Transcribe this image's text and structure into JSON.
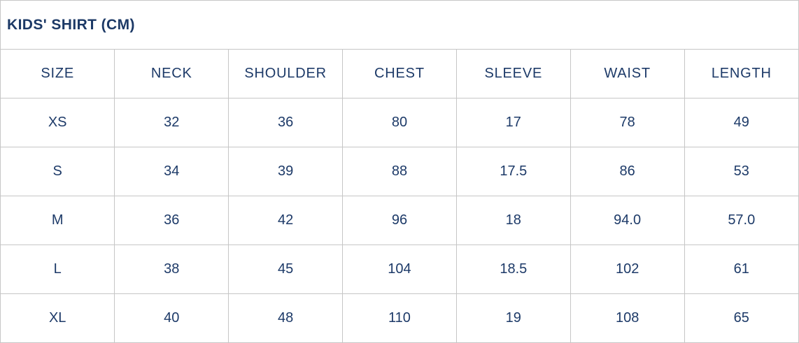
{
  "title": "KIDS' SHIRT (CM)",
  "colors": {
    "text_navy": "#1d3a68",
    "title_navy": "#1c3966",
    "border_gray": "#c6c6c6",
    "background": "#ffffff"
  },
  "chart_data": {
    "type": "table",
    "title": "KIDS' SHIRT (CM)",
    "columns": [
      "SIZE",
      "NECK",
      "SHOULDER",
      "CHEST",
      "SLEEVE",
      "WAIST",
      "LENGTH"
    ],
    "rows": [
      [
        "XS",
        "32",
        "36",
        "80",
        "17",
        "78",
        "49"
      ],
      [
        "S",
        "34",
        "39",
        "88",
        "17.5",
        "86",
        "53"
      ],
      [
        "M",
        "36",
        "42",
        "96",
        "18",
        "94.0",
        "57.0"
      ],
      [
        "L",
        "38",
        "45",
        "104",
        "18.5",
        "102",
        "61"
      ],
      [
        "XL",
        "40",
        "48",
        "110",
        "19",
        "108",
        "65"
      ]
    ]
  }
}
